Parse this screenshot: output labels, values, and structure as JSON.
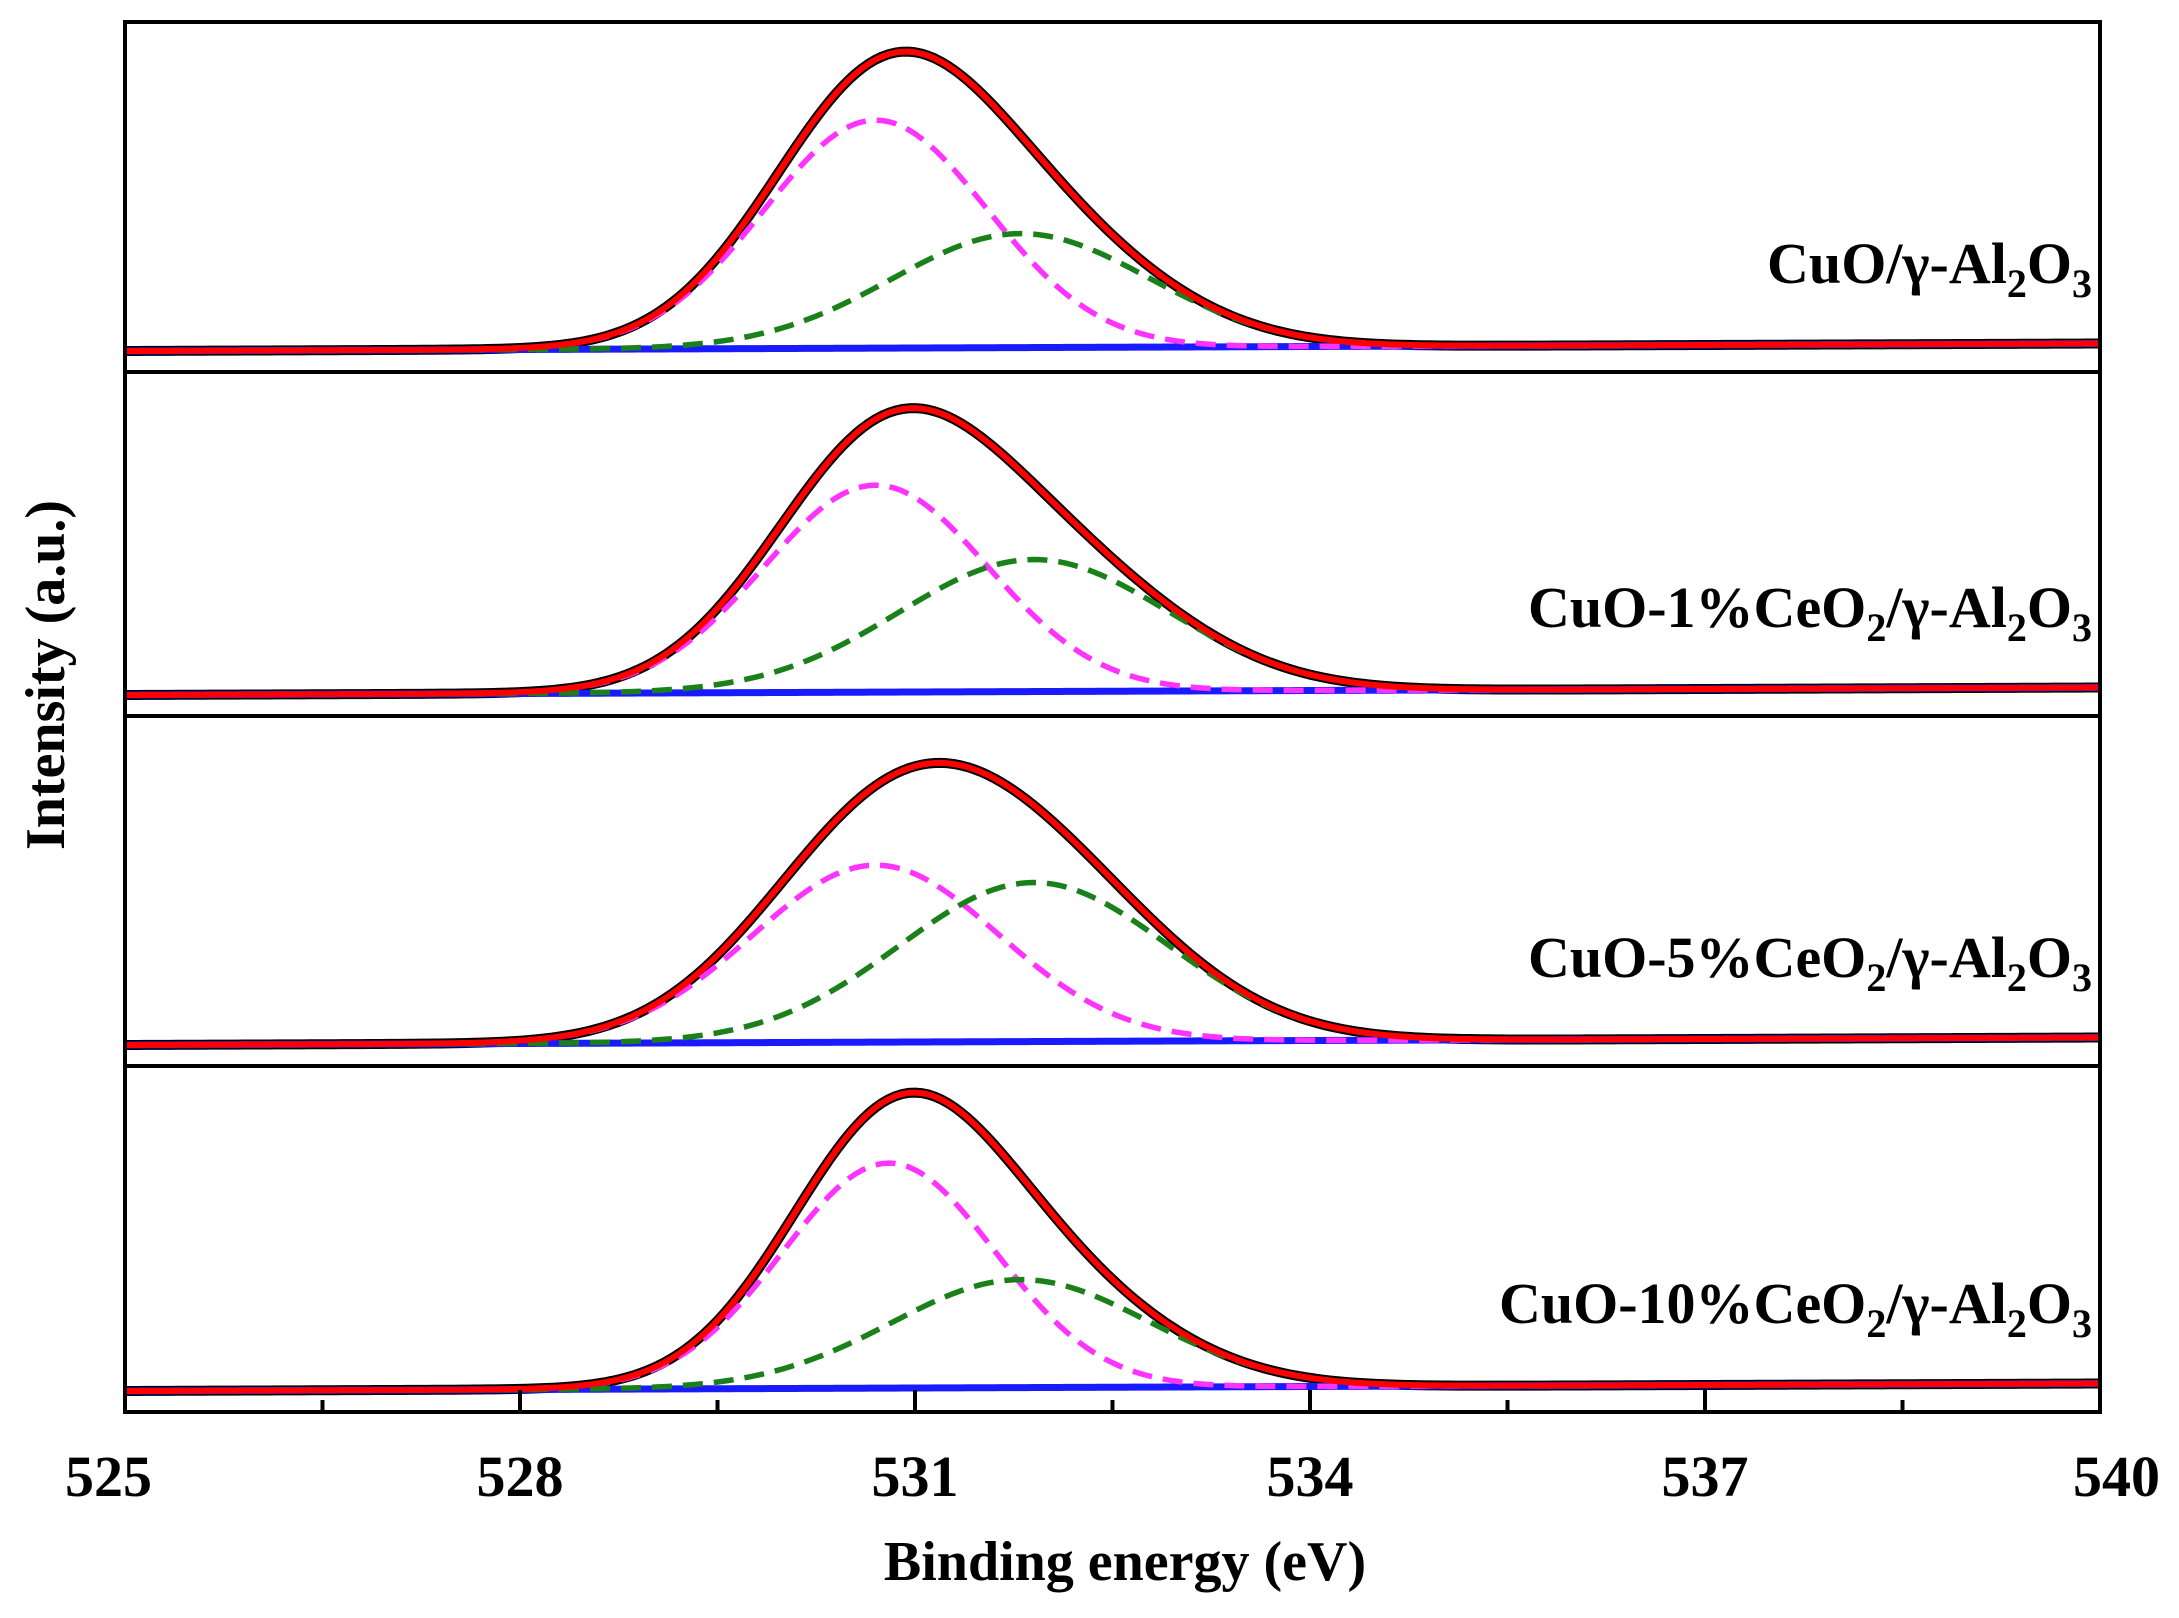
{
  "chart_data": {
    "type": "line",
    "xlabel": "Binding energy (eV)",
    "ylabel": "Intensity (a.u.)",
    "xlim": [
      525,
      540
    ],
    "x_ticks": [
      525,
      528,
      531,
      534,
      537,
      540
    ],
    "x_tick_labels": [
      "525",
      "528",
      "531",
      "534",
      "537",
      "540"
    ],
    "x_minor_ticks": [
      526.5,
      529.5,
      532.5,
      535.5,
      538.5
    ],
    "colors": {
      "raw": "#000000",
      "fit": "#ff0000",
      "peak1": "#ff33ff",
      "peak2": "#1a801a",
      "background": "#1a1aff"
    },
    "panels": [
      {
        "label": {
          "parts": [
            "CuO/γ-Al",
            "2",
            "O",
            "3"
          ]
        },
        "ylim": [
          0,
          1
        ],
        "baseline": {
          "x": [
            525,
            540
          ],
          "y": [
            0.0,
            0.025
          ]
        },
        "peak1": {
          "center": 530.7,
          "height": 0.76,
          "fwhm": 2.0
        },
        "peak2": {
          "center": 531.8,
          "height": 0.38,
          "fwhm": 2.3
        }
      },
      {
        "label": {
          "parts": [
            "CuO-1%CeO",
            "2",
            "/γ-Al",
            "2",
            "O",
            "3"
          ]
        },
        "ylim": [
          0,
          1
        ],
        "baseline": {
          "x": [
            525,
            540
          ],
          "y": [
            0.0,
            0.025
          ]
        },
        "peak1": {
          "center": 530.7,
          "height": 0.69,
          "fwhm": 2.0
        },
        "peak2": {
          "center": 531.9,
          "height": 0.44,
          "fwhm": 2.4
        }
      },
      {
        "label": {
          "parts": [
            "CuO-5%CeO",
            "2",
            "/γ-Al",
            "2",
            "O",
            "3"
          ]
        },
        "ylim": [
          0,
          1
        ],
        "baseline": {
          "x": [
            525,
            540
          ],
          "y": [
            0.0,
            0.025
          ]
        },
        "peak1": {
          "center": 530.7,
          "height": 0.59,
          "fwhm": 2.2
        },
        "peak2": {
          "center": 531.9,
          "height": 0.53,
          "fwhm": 2.4
        }
      },
      {
        "label": {
          "parts": [
            "CuO-10%CeO",
            "2",
            "/γ-Al",
            "2",
            "O",
            "3"
          ]
        },
        "ylim": [
          0,
          1
        ],
        "baseline": {
          "x": [
            525,
            540
          ],
          "y": [
            0.0,
            0.025
          ]
        },
        "peak1": {
          "center": 530.8,
          "height": 0.75,
          "fwhm": 1.9
        },
        "peak2": {
          "center": 531.8,
          "height": 0.36,
          "fwhm": 2.3
        }
      }
    ]
  }
}
